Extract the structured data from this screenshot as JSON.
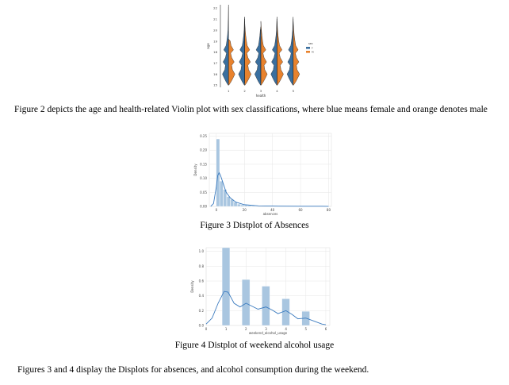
{
  "figure2": {
    "caption": "Figure 2 depicts the age and health-related Violin plot with sex classifications, where blue means female and orange denotes male",
    "chart_data": {
      "type": "violin",
      "ylabel": "age",
      "xlabel": "health",
      "categories": [
        "1",
        "2",
        "3",
        "4",
        "5"
      ],
      "y_ticks": [
        "15",
        "16",
        "17",
        "18",
        "19",
        "20",
        "21",
        "22"
      ],
      "ylim": [
        14.8,
        22.3
      ],
      "legend_title": "sex",
      "series": [
        {
          "name": "F",
          "color": "#3a6f9f"
        },
        {
          "name": "M",
          "color": "#e8822d"
        }
      ],
      "legend_placement": "right"
    }
  },
  "figure3": {
    "caption": "Figure 3 Distplot of Absences",
    "chart_data": {
      "type": "bar",
      "xlabel": "absences",
      "ylabel": "Density",
      "x_ticks": [
        "0",
        "20",
        "40",
        "60",
        "80"
      ],
      "y_ticks": [
        "0.00",
        "0.05",
        "0.10",
        "0.15",
        "0.20",
        "0.25"
      ],
      "xlim": [
        -5,
        82
      ],
      "ylim": [
        0,
        0.26
      ],
      "bins": [
        {
          "x0": 0,
          "x1": 2.5,
          "value": 0.24
        },
        {
          "x0": 2.5,
          "x1": 5,
          "value": 0.09
        },
        {
          "x0": 5,
          "x1": 7.5,
          "value": 0.06
        },
        {
          "x0": 7.5,
          "x1": 10,
          "value": 0.035
        },
        {
          "x0": 10,
          "x1": 12.5,
          "value": 0.025
        },
        {
          "x0": 12.5,
          "x1": 15,
          "value": 0.015
        },
        {
          "x0": 15,
          "x1": 17.5,
          "value": 0.008
        },
        {
          "x0": 17.5,
          "x1": 20,
          "value": 0.005
        },
        {
          "x0": 20,
          "x1": 22.5,
          "value": 0.004
        },
        {
          "x0": 22.5,
          "x1": 25,
          "value": 0.003
        },
        {
          "x0": 25,
          "x1": 27.5,
          "value": 0.002
        },
        {
          "x0": 27.5,
          "x1": 30,
          "value": 0.001
        }
      ],
      "kde": [
        [
          -4,
          0
        ],
        [
          -2,
          0.01
        ],
        [
          0,
          0.07
        ],
        [
          1,
          0.11
        ],
        [
          2,
          0.12
        ],
        [
          3,
          0.11
        ],
        [
          5,
          0.08
        ],
        [
          7,
          0.05
        ],
        [
          10,
          0.03
        ],
        [
          14,
          0.015
        ],
        [
          20,
          0.006
        ],
        [
          30,
          0.002
        ],
        [
          45,
          0.001
        ],
        [
          60,
          0.0005
        ],
        [
          75,
          0.0005
        ],
        [
          80,
          0.0003
        ]
      ],
      "grid": true
    }
  },
  "figure4": {
    "caption": "Figure 4 Distplot of weekend alcohol usage",
    "chart_data": {
      "type": "bar",
      "xlabel": "weekend_alcohol_usage",
      "ylabel": "Density",
      "x_ticks": [
        "0",
        "1",
        "2",
        "3",
        "4",
        "5",
        "6"
      ],
      "y_ticks": [
        "0.0",
        "0.2",
        "0.4",
        "0.6",
        "0.8",
        "1.0"
      ],
      "xlim": [
        0,
        6.2
      ],
      "ylim": [
        0,
        1.05
      ],
      "bins": [
        {
          "x0": 0.8,
          "x1": 1.2,
          "value": 1.05
        },
        {
          "x0": 1.8,
          "x1": 2.2,
          "value": 0.62
        },
        {
          "x0": 2.8,
          "x1": 3.2,
          "value": 0.53
        },
        {
          "x0": 3.8,
          "x1": 4.2,
          "value": 0.36
        },
        {
          "x0": 4.8,
          "x1": 5.2,
          "value": 0.19
        }
      ],
      "kde": [
        [
          0,
          0.02
        ],
        [
          0.3,
          0.1
        ],
        [
          0.6,
          0.3
        ],
        [
          0.9,
          0.46
        ],
        [
          1.1,
          0.45
        ],
        [
          1.4,
          0.3
        ],
        [
          1.7,
          0.25
        ],
        [
          2,
          0.3
        ],
        [
          2.3,
          0.26
        ],
        [
          2.6,
          0.22
        ],
        [
          3,
          0.25
        ],
        [
          3.3,
          0.21
        ],
        [
          3.6,
          0.16
        ],
        [
          4,
          0.2
        ],
        [
          4.3,
          0.15
        ],
        [
          4.6,
          0.09
        ],
        [
          5,
          0.1
        ],
        [
          5.4,
          0.06
        ],
        [
          5.8,
          0.02
        ],
        [
          6,
          0.01
        ]
      ],
      "grid": true
    }
  },
  "paragraph": "Figures 3 and 4 display the Displots for absences, and alcohol consumption during the weekend."
}
